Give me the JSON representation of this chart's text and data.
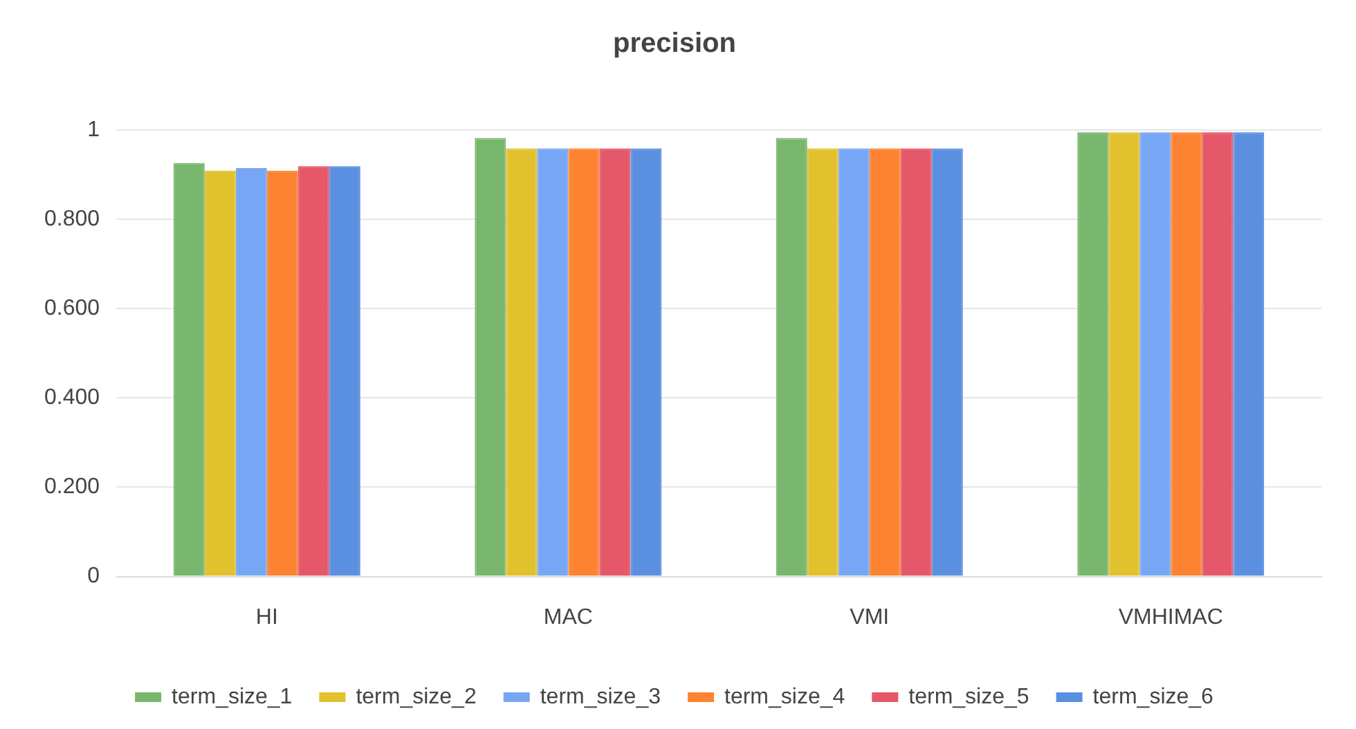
{
  "chart_data": {
    "type": "bar",
    "title": "precision",
    "categories": [
      "HI",
      "MAC",
      "VMI",
      "VMHIMAC"
    ],
    "series": [
      {
        "name": "term_size_1",
        "color": "#7ab76e",
        "values": [
          0.926,
          0.982,
          0.982,
          0.995
        ]
      },
      {
        "name": "term_size_2",
        "color": "#e2c12f",
        "values": [
          0.909,
          0.959,
          0.959,
          0.995
        ]
      },
      {
        "name": "term_size_3",
        "color": "#77a6f4",
        "values": [
          0.915,
          0.959,
          0.959,
          0.995
        ]
      },
      {
        "name": "term_size_4",
        "color": "#fd8333",
        "values": [
          0.909,
          0.959,
          0.959,
          0.995
        ]
      },
      {
        "name": "term_size_5",
        "color": "#e45869",
        "values": [
          0.919,
          0.959,
          0.959,
          0.995
        ]
      },
      {
        "name": "term_size_6",
        "color": "#5b8fe0",
        "values": [
          0.919,
          0.959,
          0.959,
          0.995
        ]
      }
    ],
    "ylim": [
      0,
      1
    ],
    "yticks": [
      0,
      {
        "value": 0.2,
        "label": "0.200"
      },
      {
        "value": 0.4,
        "label": "0.400"
      },
      {
        "value": 0.6,
        "label": "0.600"
      },
      {
        "value": 0.8,
        "label": "0.800"
      },
      1
    ],
    "grid": "y",
    "legend": "bottom"
  }
}
